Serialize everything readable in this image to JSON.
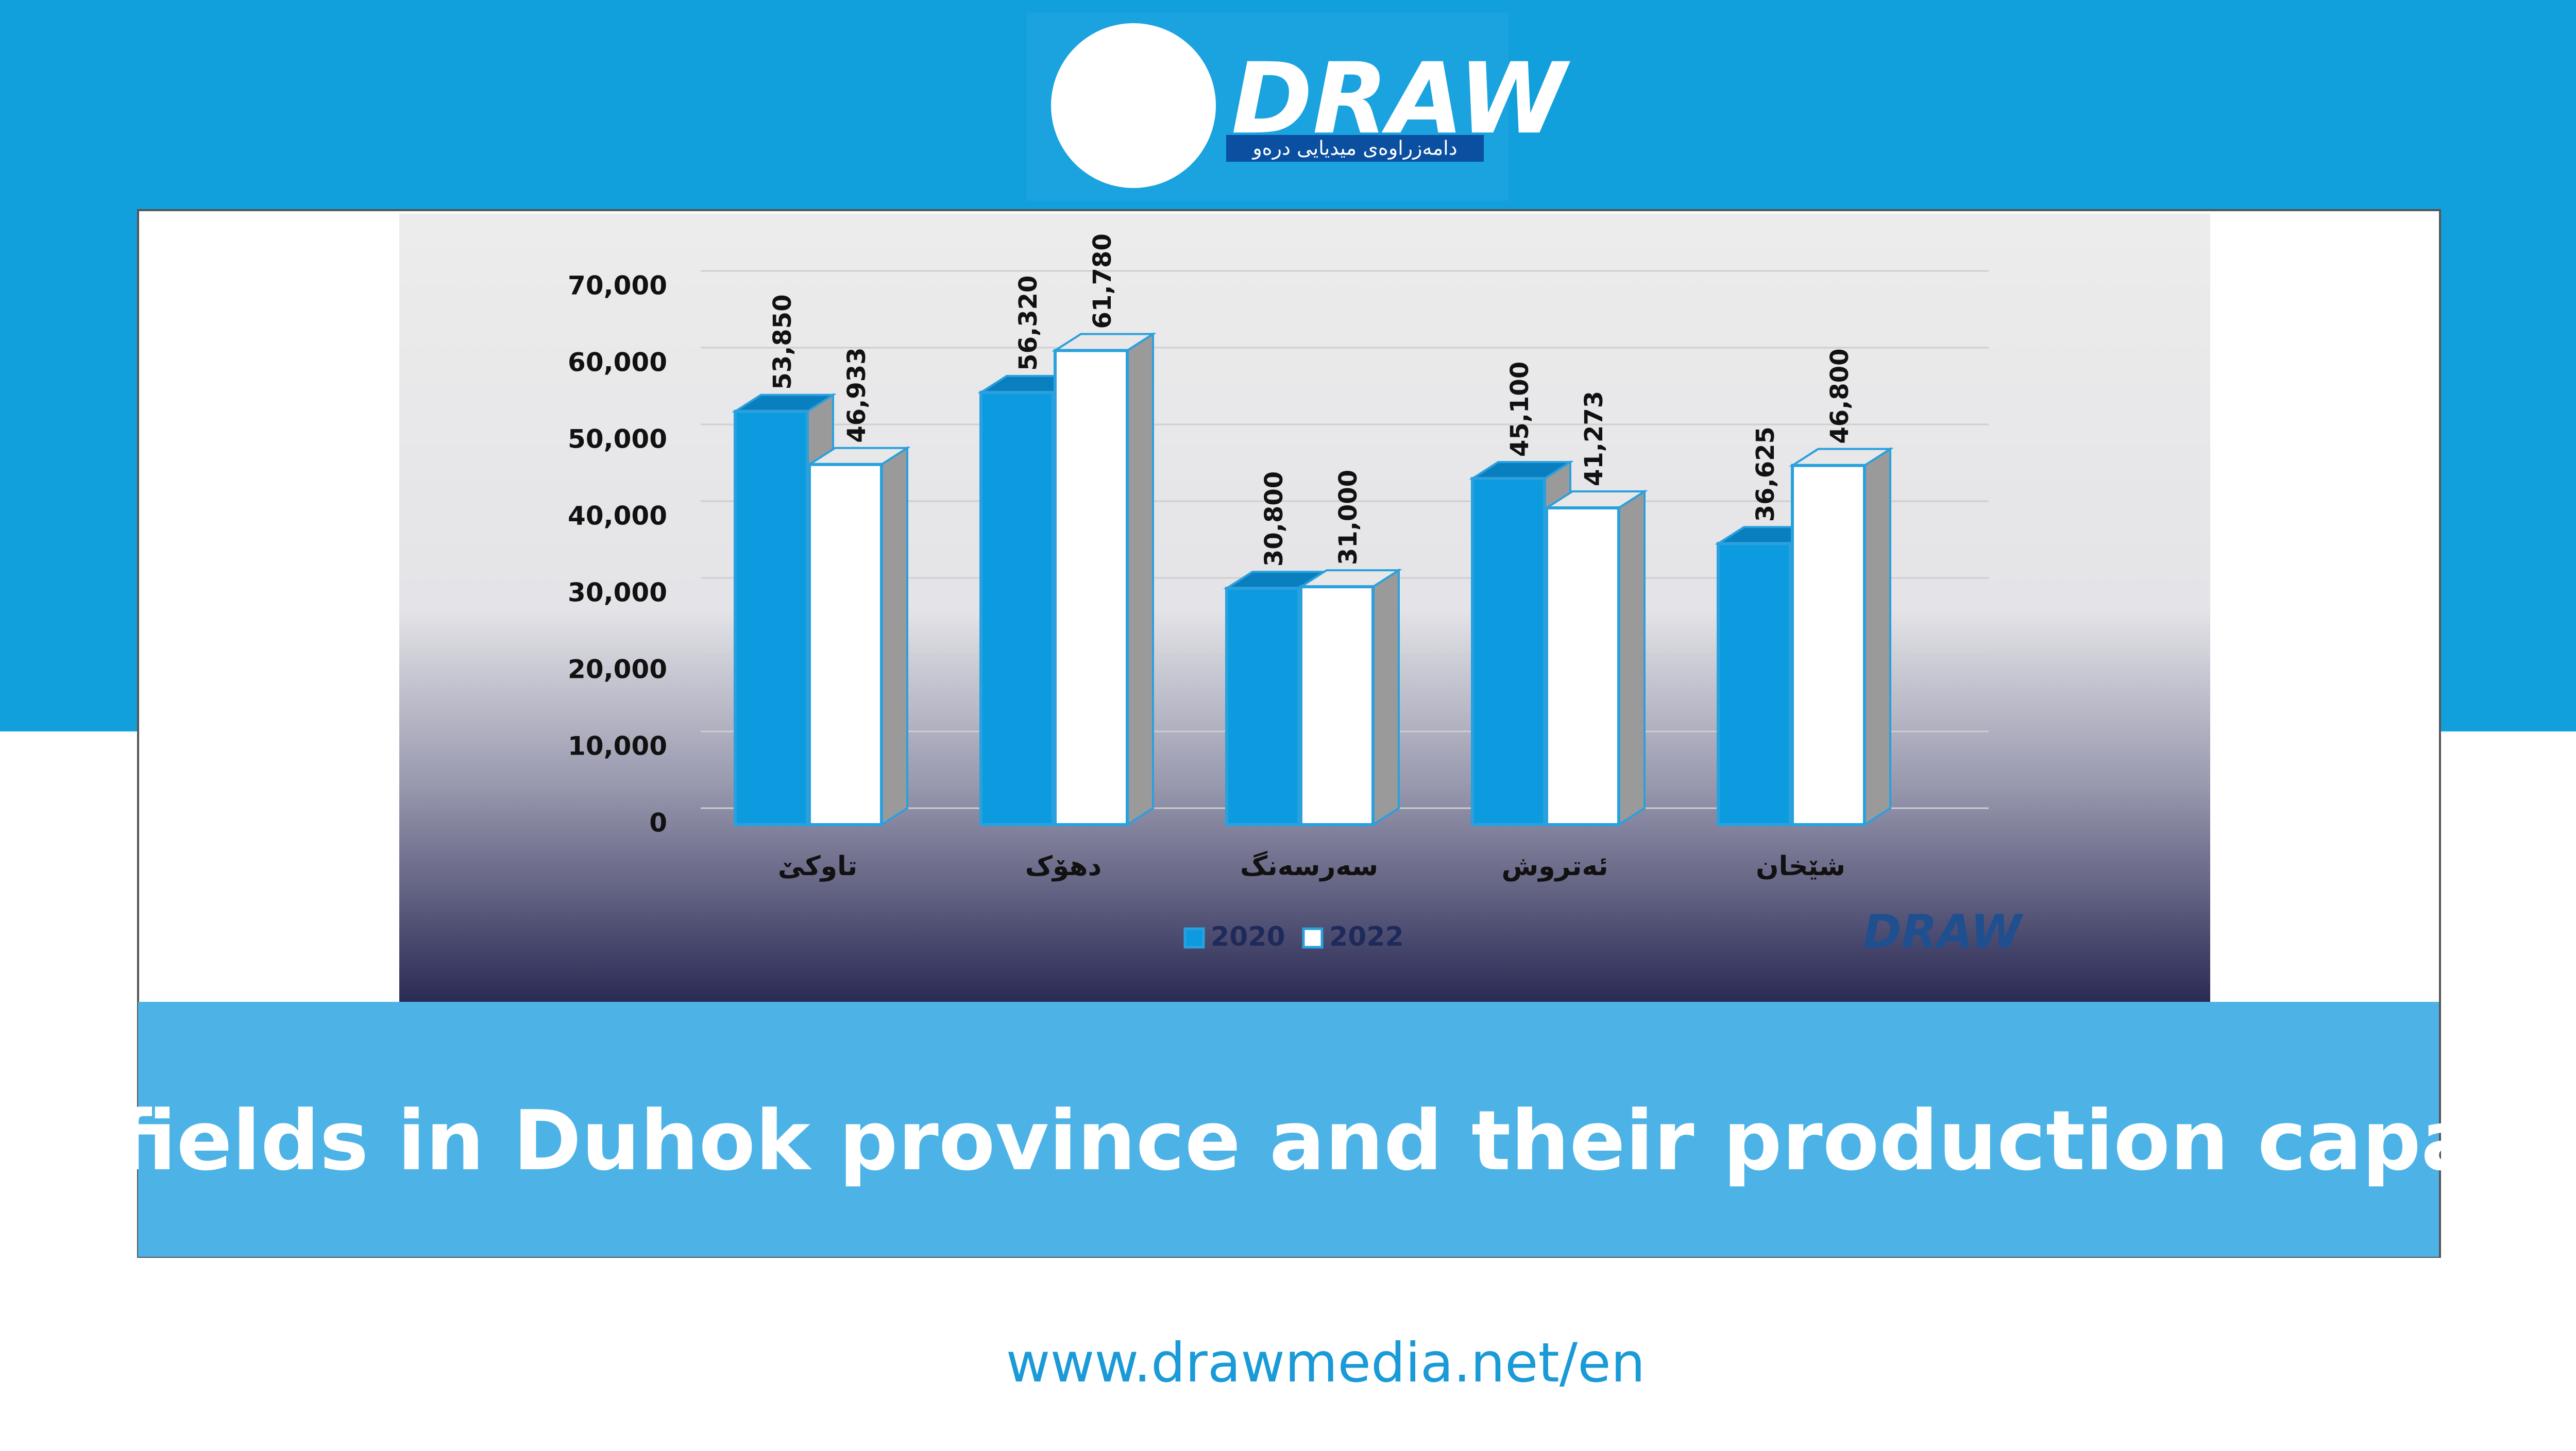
{
  "logo": {
    "name": "DRAW",
    "tagline": "دامەزراوەی میدیایی درەو"
  },
  "chart_data": {
    "type": "bar",
    "categories": [
      "تاوکێ",
      "دهۆک",
      "سەرسەنگ",
      "ئەتروش",
      "شێخان"
    ],
    "series": [
      {
        "name": "2020",
        "color": "#0d9be0",
        "values": [
          53850,
          56320,
          30800,
          45100,
          36625
        ],
        "value_labels": [
          "53,850",
          "56,320",
          "30,800",
          "45,100",
          "36,625"
        ]
      },
      {
        "name": "2022",
        "color": "#ffffff",
        "values": [
          46933,
          61780,
          31000,
          41273,
          46800
        ],
        "value_labels": [
          "46,933",
          "61,780",
          "31,000",
          "41,273",
          "46,800"
        ]
      }
    ],
    "ylim": [
      0,
      70000
    ],
    "yticks": [
      0,
      {
        "value": 10000,
        "label": "10,000"
      },
      {
        "value": 20000,
        "label": "20,000"
      },
      {
        "value": 30000,
        "label": "30,000"
      },
      {
        "value": 40000,
        "label": "40,000"
      },
      {
        "value": 50000,
        "label": "50,000"
      },
      {
        "value": 60000,
        "label": "60,000"
      },
      {
        "value": 70000,
        "label": "70,000"
      }
    ],
    "grid": true,
    "legend": "bottom"
  },
  "caption": "Oil fields in Duhok province and their production capacity",
  "url": "www.drawmedia.net/en"
}
